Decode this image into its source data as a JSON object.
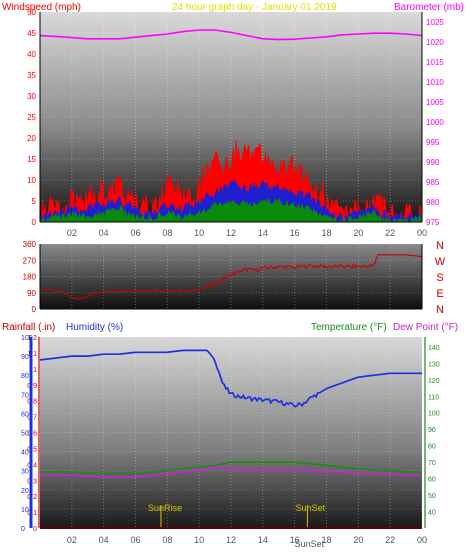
{
  "colors": {
    "windspeed": "#ff0000",
    "wind_mid": "#1f1fd0",
    "wind_low": "#0a8a0a",
    "barometer": "#ff00ff",
    "title": "#e0e000",
    "direction": "#cc0000",
    "humidity": "#1f2fe0",
    "temperature": "#1c8a1c",
    "dewpoint": "#cc22cc",
    "rainfall": "#cc0000",
    "sun": "#d4c000"
  },
  "chart_data": [
    {
      "type": "area",
      "title": "24 hour graph day - January 01 2019",
      "ylabel_left": "Windspeed (mph)",
      "ylabel_right": "Barometer (mb)",
      "x_ticks": [
        "02",
        "04",
        "06",
        "08",
        "10",
        "12",
        "14",
        "16",
        "18",
        "20",
        "22",
        "00"
      ],
      "y_ticks_left": [
        "0",
        "5",
        "10",
        "15",
        "20",
        "25",
        "30",
        "35",
        "40",
        "45",
        "50"
      ],
      "y_ticks_right": [
        "975",
        "980",
        "985",
        "990",
        "995",
        "1000",
        "1005",
        "1010",
        "1015",
        "1020",
        "1025"
      ],
      "ylim_left": [
        0,
        50
      ],
      "ylim_right": [
        975,
        1027.5
      ],
      "x_range_hours": [
        0,
        24
      ],
      "series": [
        {
          "name": "Windspeed (mph)",
          "x": [
            0,
            0.5,
            1,
            1.5,
            2,
            2.5,
            3,
            3.5,
            4,
            4.5,
            5,
            5.5,
            6,
            6.5,
            7,
            7.5,
            8,
            8.5,
            9,
            9.5,
            10,
            10.5,
            11,
            11.5,
            12,
            12.5,
            13,
            13.5,
            14,
            14.5,
            15,
            15.5,
            16,
            16.5,
            17,
            17.5,
            18,
            18.5,
            19,
            19.5,
            20,
            20.5,
            21,
            21.5,
            22,
            22.5,
            23,
            23.5,
            24
          ],
          "values": [
            2,
            4,
            3,
            4,
            5,
            3,
            7,
            5,
            8,
            6,
            10,
            7,
            5,
            4,
            3,
            6,
            8,
            9,
            7,
            5,
            9,
            12,
            14,
            13,
            15,
            17,
            16,
            18,
            15,
            14,
            13,
            12,
            13,
            11,
            9,
            8,
            5,
            3,
            2,
            1,
            3,
            2,
            5,
            4,
            2,
            1,
            2,
            1,
            3
          ]
        },
        {
          "name": "Wind (blue)",
          "x": [
            0,
            1,
            2,
            3,
            4,
            5,
            6,
            7,
            8,
            9,
            10,
            11,
            12,
            13,
            14,
            15,
            16,
            17,
            18,
            19,
            20,
            21,
            22,
            23,
            24
          ],
          "values": [
            1,
            2,
            3,
            3,
            4,
            5,
            3,
            2,
            4,
            3,
            5,
            7,
            9,
            8,
            9,
            8,
            7,
            6,
            3,
            1,
            2,
            3,
            1,
            1,
            2
          ]
        },
        {
          "name": "Wind (green)",
          "x": [
            0,
            1,
            2,
            3,
            4,
            5,
            6,
            7,
            8,
            9,
            10,
            11,
            12,
            13,
            14,
            15,
            16,
            17,
            18,
            19,
            20,
            21,
            22,
            23,
            24
          ],
          "values": [
            0,
            1,
            2,
            1,
            2,
            3,
            1,
            1,
            2,
            1,
            2,
            4,
            5,
            4,
            5,
            5,
            4,
            3,
            1,
            0,
            1,
            2,
            0,
            0,
            1
          ]
        },
        {
          "name": "Barometer (mb)",
          "x": [
            0,
            1,
            2,
            3,
            4,
            5,
            6,
            7,
            8,
            9,
            10,
            11,
            12,
            13,
            14,
            15,
            16,
            17,
            18,
            19,
            20,
            21,
            22,
            23,
            24
          ],
          "values": [
            1021.6,
            1021.4,
            1021.1,
            1020.8,
            1020.8,
            1020.8,
            1021.2,
            1021.6,
            1022.0,
            1022.6,
            1023.0,
            1023.0,
            1022.4,
            1021.6,
            1020.8,
            1020.6,
            1020.7,
            1021.0,
            1021.3,
            1021.8,
            1022.0,
            1022.2,
            1022.2,
            1022.0,
            1021.6
          ]
        }
      ]
    },
    {
      "type": "line",
      "ylabel_right_letters": [
        "N",
        "W",
        "S",
        "E",
        "N"
      ],
      "y_ticks": [
        "0",
        "90",
        "180",
        "270",
        "360"
      ],
      "ylim": [
        0,
        360
      ],
      "x_range_hours": [
        0,
        24
      ],
      "series": [
        {
          "name": "Wind direction",
          "x": [
            0,
            0.5,
            1,
            1.5,
            2,
            2.5,
            3,
            3.5,
            4,
            5,
            6,
            7,
            8,
            9,
            10,
            10.5,
            11,
            11.5,
            12,
            12.5,
            13,
            13.5,
            14,
            15,
            16,
            17,
            18,
            19,
            20,
            21,
            21.2,
            22,
            23,
            24
          ],
          "values": [
            105,
            110,
            100,
            95,
            60,
            55,
            70,
            90,
            95,
            98,
            100,
            103,
            100,
            100,
            105,
            120,
            140,
            165,
            190,
            205,
            220,
            215,
            225,
            235,
            230,
            240,
            235,
            235,
            235,
            240,
            300,
            300,
            300,
            290
          ]
        }
      ]
    },
    {
      "type": "line",
      "ylabel_left_1": "Rainfall (.in)",
      "ylabel_left_2": "Humidity (%)",
      "ylabel_right_1": "Temperature (°F)",
      "ylabel_right_2": "Dew Point (°F)",
      "x_ticks": [
        "02",
        "04",
        "06",
        "08",
        "10",
        "12",
        "14",
        "16",
        "18",
        "20",
        "22",
        "00"
      ],
      "y_ticks_humidity": [
        "0",
        "10",
        "20",
        "30",
        "40",
        "50",
        "60",
        "70",
        "80",
        "90",
        "100"
      ],
      "y_ticks_rain": [
        "0",
        "0.1",
        "0.2",
        "0.3",
        "0.4",
        "0.5",
        "0.6",
        "0.7",
        "0.8",
        "0.9",
        "1",
        "1.1",
        "1.2"
      ],
      "y_ticks_temp": [
        "40",
        "50",
        "60",
        "70",
        "80",
        "90",
        "100",
        "110",
        "120",
        "130",
        "140"
      ],
      "ylim_humidity": [
        0,
        100
      ],
      "ylim_rain": [
        0,
        1.2
      ],
      "ylim_temp": [
        30,
        146
      ],
      "x_range_hours": [
        0,
        24
      ],
      "annotations": [
        "SunRise",
        "SunSet",
        "SunSet"
      ],
      "sunrise_hour": 7.6,
      "sunset_hour": 16.8,
      "series": [
        {
          "name": "Humidity (%)",
          "x": [
            0,
            1,
            2,
            3,
            4,
            5,
            6,
            7,
            8,
            9,
            10,
            10.5,
            11,
            11.5,
            12,
            13,
            14,
            15,
            16,
            16.5,
            17,
            18,
            19,
            20,
            21,
            22,
            23,
            24
          ],
          "values": [
            88,
            89,
            90,
            90,
            91,
            91,
            92,
            92,
            92,
            93,
            93,
            93,
            88,
            75,
            70,
            68,
            67,
            66,
            64,
            65,
            68,
            73,
            76,
            79,
            80,
            81,
            81,
            81
          ]
        },
        {
          "name": "Temperature (°F)",
          "x": [
            0,
            2,
            4,
            6,
            7,
            8,
            9,
            10,
            11,
            12,
            13,
            14,
            15,
            16,
            17,
            18,
            19,
            20,
            21,
            22,
            23,
            24
          ],
          "values": [
            64,
            64,
            63,
            63,
            64,
            65,
            66,
            67,
            68,
            70,
            70,
            70,
            70,
            70,
            69,
            68,
            67,
            66,
            65,
            65,
            64,
            64
          ]
        },
        {
          "name": "Dew Point (°F)",
          "x": [
            0,
            2,
            4,
            6,
            7,
            8,
            9,
            10,
            11,
            12,
            13,
            14,
            15,
            16,
            17,
            18,
            19,
            20,
            21,
            22,
            23,
            24
          ],
          "values": [
            62,
            62,
            61,
            61,
            62,
            63,
            64,
            65,
            67,
            66,
            65,
            65,
            65,
            65,
            65,
            64,
            64,
            63,
            63,
            63,
            62,
            62
          ]
        },
        {
          "name": "Rainfall (.in)",
          "x": [
            0,
            24
          ],
          "values": [
            0,
            0
          ]
        }
      ]
    }
  ]
}
